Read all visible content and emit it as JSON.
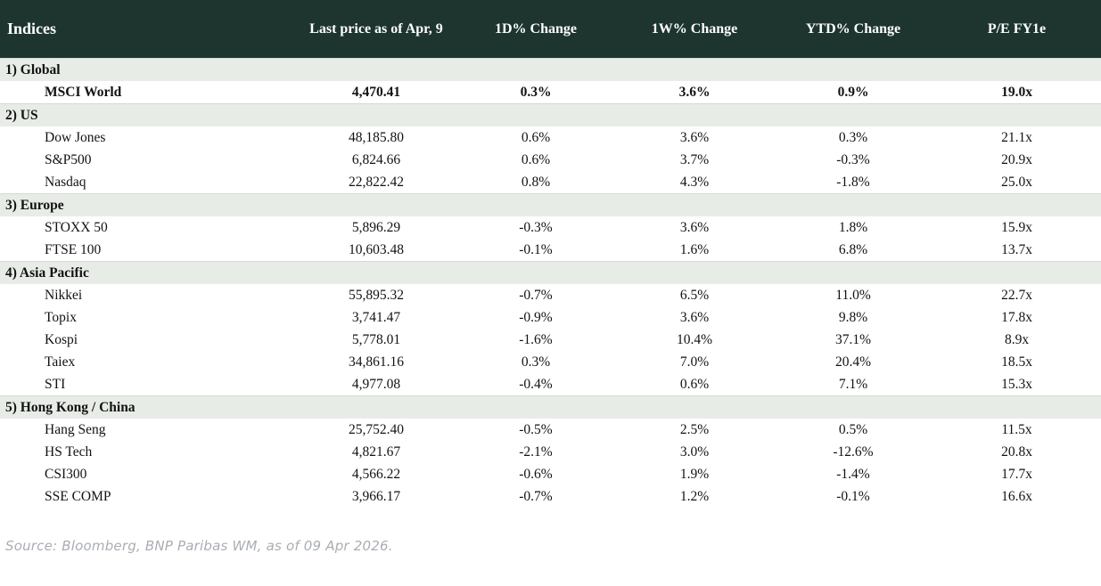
{
  "table": {
    "title": "Indices",
    "columns": {
      "last_price": "Last price as of Apr, 9",
      "chg_1d": "1D% Change",
      "chg_1w": "1W% Change",
      "chg_ytd": "YTD% Change",
      "pe": "P/E FY1e"
    },
    "sections": [
      {
        "label": "1) Global",
        "rows": [
          {
            "name": "MSCI World",
            "last_price": "4,470.41",
            "chg_1d": "0.3%",
            "chg_1w": "3.6%",
            "chg_ytd": "0.9%",
            "pe": "19.0x",
            "bold": true
          }
        ]
      },
      {
        "label": "2) US",
        "rows": [
          {
            "name": "Dow Jones",
            "last_price": "48,185.80",
            "chg_1d": "0.6%",
            "chg_1w": "3.6%",
            "chg_ytd": "0.3%",
            "pe": "21.1x",
            "bold": false
          },
          {
            "name": "S&P500",
            "last_price": "6,824.66",
            "chg_1d": "0.6%",
            "chg_1w": "3.7%",
            "chg_ytd": "-0.3%",
            "pe": "20.9x",
            "bold": false
          },
          {
            "name": "Nasdaq",
            "last_price": "22,822.42",
            "chg_1d": "0.8%",
            "chg_1w": "4.3%",
            "chg_ytd": "-1.8%",
            "pe": "25.0x",
            "bold": false
          }
        ]
      },
      {
        "label": "3) Europe",
        "rows": [
          {
            "name": "STOXX 50",
            "last_price": "5,896.29",
            "chg_1d": "-0.3%",
            "chg_1w": "3.6%",
            "chg_ytd": "1.8%",
            "pe": "15.9x",
            "bold": false
          },
          {
            "name": "FTSE 100",
            "last_price": "10,603.48",
            "chg_1d": "-0.1%",
            "chg_1w": "1.6%",
            "chg_ytd": "6.8%",
            "pe": "13.7x",
            "bold": false
          }
        ]
      },
      {
        "label": "4) Asia Pacific",
        "rows": [
          {
            "name": "Nikkei",
            "last_price": "55,895.32",
            "chg_1d": "-0.7%",
            "chg_1w": "6.5%",
            "chg_ytd": "11.0%",
            "pe": "22.7x",
            "bold": false
          },
          {
            "name": "Topix",
            "last_price": "3,741.47",
            "chg_1d": "-0.9%",
            "chg_1w": "3.6%",
            "chg_ytd": "9.8%",
            "pe": "17.8x",
            "bold": false
          },
          {
            "name": "Kospi",
            "last_price": "5,778.01",
            "chg_1d": "-1.6%",
            "chg_1w": "10.4%",
            "chg_ytd": "37.1%",
            "pe": "8.9x",
            "bold": false
          },
          {
            "name": "Taiex",
            "last_price": "34,861.16",
            "chg_1d": "0.3%",
            "chg_1w": "7.0%",
            "chg_ytd": "20.4%",
            "pe": "18.5x",
            "bold": false
          },
          {
            "name": "STI",
            "last_price": "4,977.08",
            "chg_1d": "-0.4%",
            "chg_1w": "0.6%",
            "chg_ytd": "7.1%",
            "pe": "15.3x",
            "bold": false
          }
        ]
      },
      {
        "label": "5) Hong Kong / China",
        "rows": [
          {
            "name": "Hang Seng",
            "last_price": "25,752.40",
            "chg_1d": "-0.5%",
            "chg_1w": "2.5%",
            "chg_ytd": "0.5%",
            "pe": "11.5x",
            "bold": false
          },
          {
            "name": "HS Tech",
            "last_price": "4,821.67",
            "chg_1d": "-2.1%",
            "chg_1w": "3.0%",
            "chg_ytd": "-12.6%",
            "pe": "20.8x",
            "bold": false
          },
          {
            "name": "CSI300",
            "last_price": "4,566.22",
            "chg_1d": "-0.6%",
            "chg_1w": "1.9%",
            "chg_ytd": "-1.4%",
            "pe": "17.7x",
            "bold": false
          },
          {
            "name": "SSE COMP",
            "last_price": "3,966.17",
            "chg_1d": "-0.7%",
            "chg_1w": "1.2%",
            "chg_ytd": "-0.1%",
            "pe": "16.6x",
            "bold": false
          }
        ]
      }
    ]
  },
  "footer": {
    "source": "Source: Bloomberg, BNP Paribas WM, as of 09 Apr 2026."
  },
  "colors": {
    "positive": "#008000",
    "negative": "#c8102e",
    "header_bg": "#1d352e",
    "section_bg": "#e8ece7"
  }
}
